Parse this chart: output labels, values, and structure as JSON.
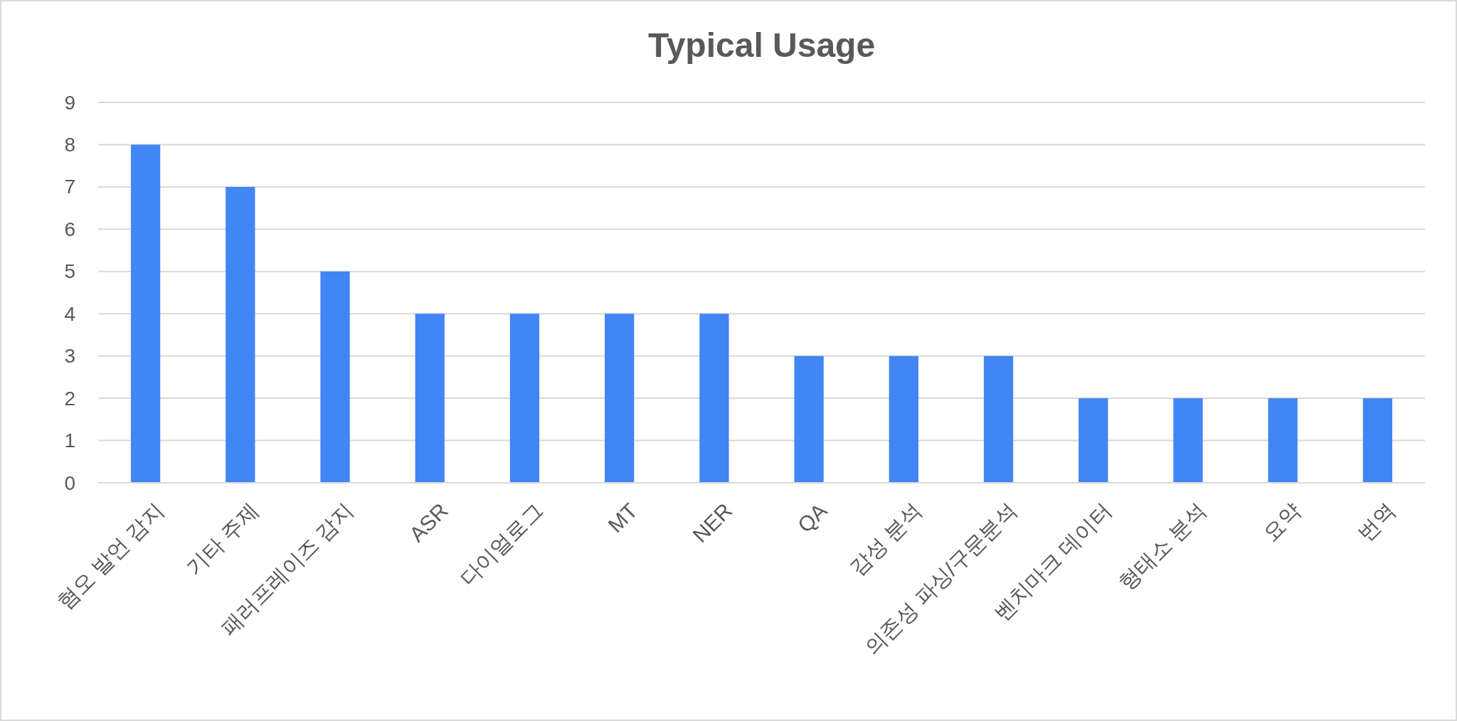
{
  "chart_data": {
    "type": "bar",
    "title": "Typical Usage",
    "categories": [
      "혐오 발언 감지",
      "기타 주제",
      "패러프레이즈 감지",
      "ASR",
      "다이얼로그",
      "MT",
      "NER",
      "QA",
      "감성 분석",
      "의존성 파싱/구문분석",
      "벤치마크 데이터",
      "형태소 분석",
      "요약",
      "번역"
    ],
    "values": [
      8,
      7,
      5,
      4,
      4,
      4,
      4,
      3,
      3,
      3,
      2,
      2,
      2,
      2
    ],
    "color": "#4285f4",
    "ylim": [
      0,
      9
    ],
    "yticks": [
      0,
      1,
      2,
      3,
      4,
      5,
      6,
      7,
      8,
      9
    ],
    "grid": "y"
  }
}
